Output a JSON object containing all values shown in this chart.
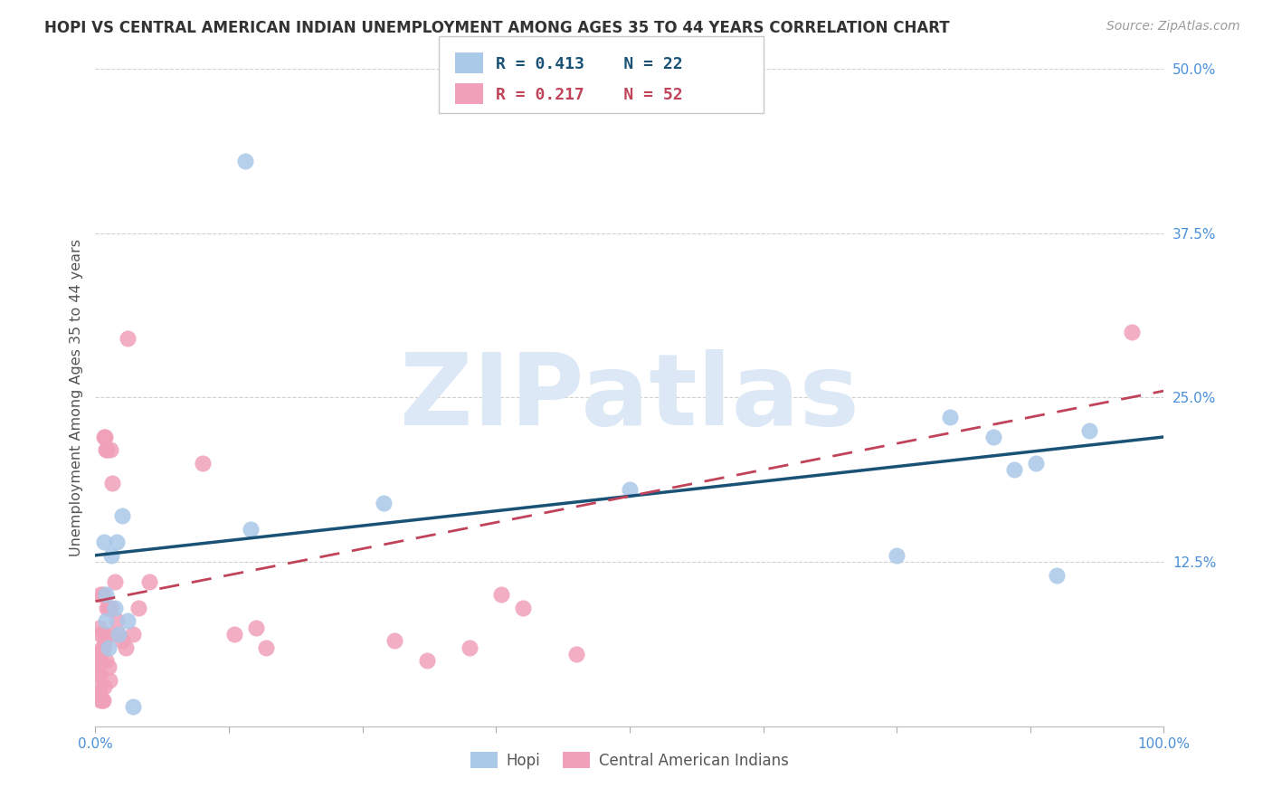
{
  "title": "HOPI VS CENTRAL AMERICAN INDIAN UNEMPLOYMENT AMONG AGES 35 TO 44 YEARS CORRELATION CHART",
  "source": "Source: ZipAtlas.com",
  "ylabel": "Unemployment Among Ages 35 to 44 years",
  "hopi_R": "0.413",
  "hopi_N": "22",
  "ca_R": "0.217",
  "ca_N": "52",
  "hopi_color": "#aac8e8",
  "ca_color": "#f0a0b8",
  "hopi_line_color": "#1a5276",
  "ca_line_color": "#c0435a",
  "hopi_x": [
    0.008,
    0.01,
    0.01,
    0.012,
    0.015,
    0.018,
    0.02,
    0.022,
    0.025,
    0.03,
    0.035,
    0.14,
    0.145,
    0.27,
    0.5,
    0.75,
    0.8,
    0.84,
    0.86,
    0.88,
    0.9,
    0.93
  ],
  "hopi_y": [
    0.14,
    0.1,
    0.08,
    0.06,
    0.13,
    0.09,
    0.14,
    0.07,
    0.16,
    0.08,
    0.015,
    0.43,
    0.15,
    0.17,
    0.18,
    0.13,
    0.235,
    0.22,
    0.195,
    0.2,
    0.115,
    0.225
  ],
  "ca_x": [
    0.003,
    0.003,
    0.003,
    0.004,
    0.004,
    0.004,
    0.004,
    0.005,
    0.005,
    0.005,
    0.005,
    0.006,
    0.006,
    0.007,
    0.007,
    0.007,
    0.008,
    0.008,
    0.008,
    0.009,
    0.009,
    0.01,
    0.01,
    0.011,
    0.011,
    0.012,
    0.012,
    0.013,
    0.013,
    0.014,
    0.015,
    0.016,
    0.018,
    0.02,
    0.022,
    0.025,
    0.028,
    0.03,
    0.035,
    0.04,
    0.05,
    0.1,
    0.13,
    0.15,
    0.16,
    0.28,
    0.31,
    0.35,
    0.38,
    0.4,
    0.45,
    0.97
  ],
  "ca_y": [
    0.05,
    0.04,
    0.03,
    0.075,
    0.055,
    0.04,
    0.025,
    0.1,
    0.07,
    0.05,
    0.02,
    0.06,
    0.02,
    0.1,
    0.06,
    0.02,
    0.22,
    0.07,
    0.03,
    0.22,
    0.065,
    0.21,
    0.05,
    0.21,
    0.09,
    0.09,
    0.045,
    0.07,
    0.035,
    0.21,
    0.09,
    0.185,
    0.11,
    0.08,
    0.07,
    0.065,
    0.06,
    0.295,
    0.07,
    0.09,
    0.11,
    0.2,
    0.07,
    0.075,
    0.06,
    0.065,
    0.05,
    0.06,
    0.1,
    0.09,
    0.055,
    0.3
  ],
  "xlim": [
    0,
    1.0
  ],
  "ylim": [
    0,
    0.5
  ],
  "xticks": [
    0.0,
    0.125,
    0.25,
    0.375,
    0.5,
    0.625,
    0.75,
    0.875,
    1.0
  ],
  "yticks": [
    0.0,
    0.125,
    0.25,
    0.375,
    0.5
  ],
  "xtick_labels": [
    "0.0%",
    "",
    "",
    "",
    "",
    "",
    "",
    "",
    "100.0%"
  ],
  "ytick_labels": [
    "",
    "12.5%",
    "25.0%",
    "37.5%",
    "50.0%"
  ],
  "background_color": "#ffffff",
  "grid_color": "#d0d0d0",
  "watermark_text": "ZIPatlas",
  "watermark_color": "#dce8f5",
  "hopi_line_y0": 0.13,
  "hopi_line_y1": 0.22,
  "ca_line_y0": 0.095,
  "ca_line_y1": 0.255
}
